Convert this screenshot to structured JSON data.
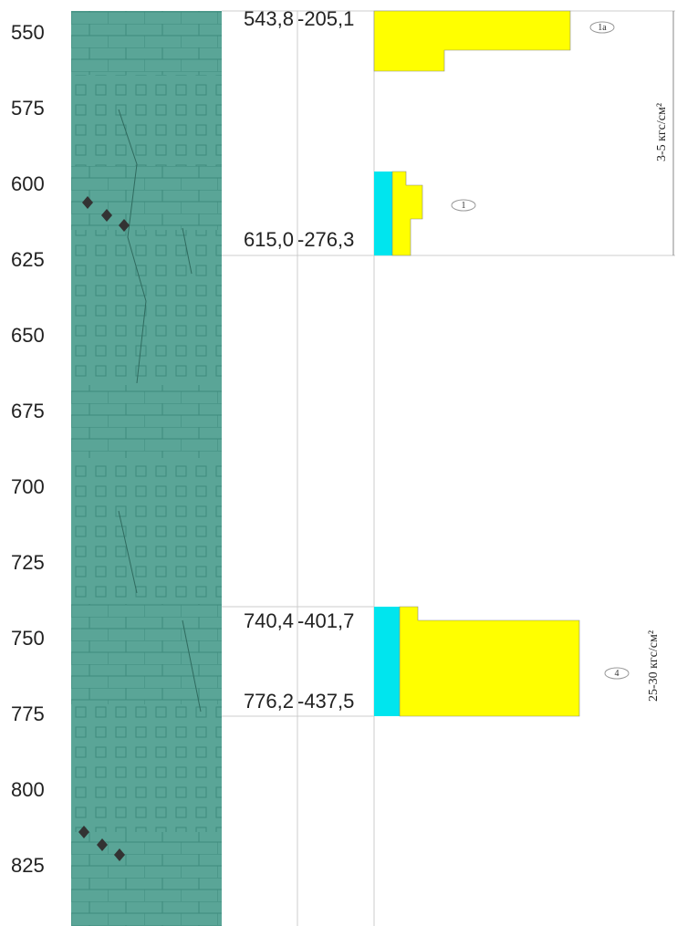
{
  "depth_ticks": [
    550,
    575,
    600,
    625,
    650,
    675,
    700,
    725,
    750,
    775,
    800,
    825
  ],
  "intervals": [
    {
      "depth": "543,8",
      "abs": "-205,1"
    },
    {
      "depth": "615,0",
      "abs": "-276,3"
    },
    {
      "depth": "740,4",
      "abs": "-401,7"
    },
    {
      "depth": "776,2",
      "abs": "-437,5"
    }
  ],
  "layers": [
    {
      "tag": "1а"
    },
    {
      "tag": "1"
    },
    {
      "tag": "4"
    }
  ],
  "pressures": [
    "3-5 кгс/см²",
    "25-30 кгс/см²"
  ]
}
